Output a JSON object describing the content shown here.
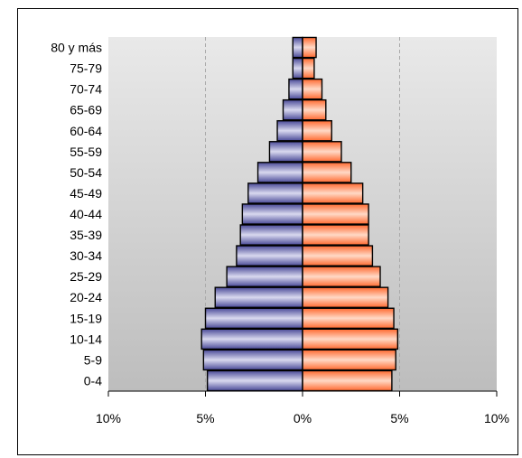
{
  "chart_data": {
    "type": "bar",
    "orientation": "horizontal",
    "layout": "population-pyramid",
    "title": "",
    "xlabel": "",
    "ylabel": "",
    "categories": [
      "80 y más",
      "75-79",
      "70-74",
      "65-69",
      "60-64",
      "55-59",
      "50-54",
      "45-49",
      "40-44",
      "35-39",
      "30-34",
      "25-29",
      "20-24",
      "15-19",
      "10-14",
      "5-9",
      "0-4"
    ],
    "x_ticks": [
      "10%",
      "5%",
      "0%",
      "5%",
      "10%"
    ],
    "xlim": [
      -10,
      10
    ],
    "grid": "vertical-dashed",
    "legend": "none",
    "series": [
      {
        "side": "left",
        "color": "#5a5aa8",
        "values": [
          0.5,
          0.5,
          0.7,
          1.0,
          1.3,
          1.7,
          2.3,
          2.8,
          3.1,
          3.2,
          3.4,
          3.9,
          4.5,
          5.0,
          5.2,
          5.1,
          4.9
        ]
      },
      {
        "side": "right",
        "color": "#ff7a48",
        "values": [
          0.7,
          0.6,
          1.0,
          1.2,
          1.5,
          2.0,
          2.5,
          3.1,
          3.4,
          3.4,
          3.6,
          4.0,
          4.4,
          4.7,
          4.9,
          4.8,
          4.6
        ]
      }
    ]
  }
}
